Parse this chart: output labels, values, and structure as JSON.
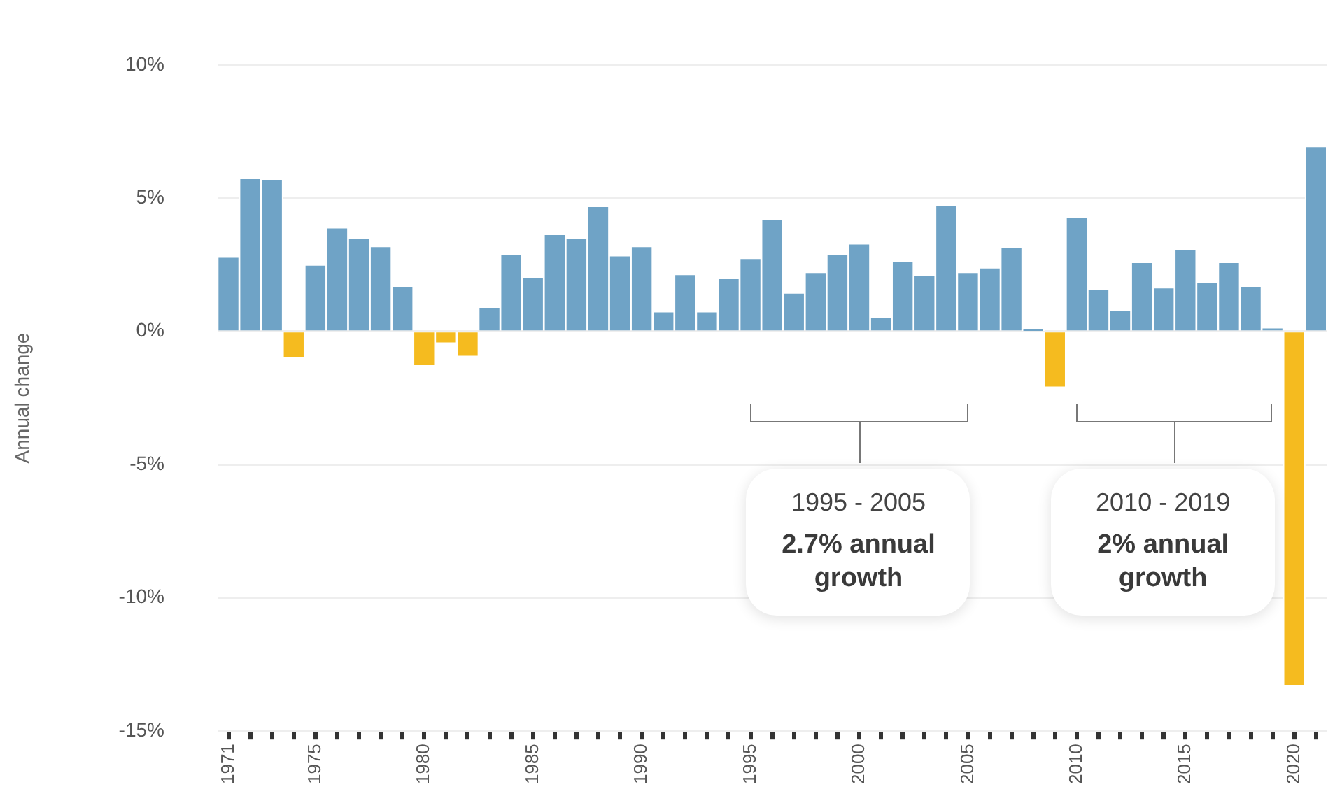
{
  "chart_data": {
    "type": "bar",
    "ylabel": "Annual change",
    "categories": [
      "1971",
      null,
      null,
      null,
      "1975",
      null,
      null,
      null,
      null,
      "1980",
      null,
      null,
      null,
      null,
      "1985",
      null,
      null,
      null,
      null,
      "1990",
      null,
      null,
      null,
      null,
      "1995",
      null,
      null,
      null,
      null,
      "2000",
      null,
      null,
      null,
      null,
      "2005",
      null,
      null,
      null,
      null,
      "2010",
      null,
      null,
      null,
      null,
      "2015",
      null,
      null,
      null,
      null,
      "2020",
      null
    ],
    "values": [
      2.8,
      5.75,
      5.7,
      -1.0,
      2.5,
      3.9,
      3.5,
      3.2,
      1.7,
      -1.3,
      -0.45,
      -0.95,
      0.9,
      2.9,
      2.05,
      3.65,
      3.5,
      4.7,
      2.85,
      3.2,
      0.75,
      2.15,
      0.75,
      2.0,
      2.75,
      4.2,
      1.45,
      2.2,
      2.9,
      3.3,
      0.55,
      2.65,
      2.1,
      4.75,
      2.2,
      2.4,
      3.15,
      0.1,
      -2.1,
      4.3,
      1.6,
      0.8,
      2.6,
      1.65,
      3.1,
      1.85,
      2.6,
      1.7,
      0.15,
      -13.3,
      6.95
    ],
    "colors": [
      "#6fa3c6",
      "#6fa3c6",
      "#6fa3c6",
      "#f5bb1f",
      "#6fa3c6",
      "#6fa3c6",
      "#6fa3c6",
      "#6fa3c6",
      "#6fa3c6",
      "#f5bb1f",
      "#f5bb1f",
      "#f5bb1f",
      "#6fa3c6",
      "#6fa3c6",
      "#6fa3c6",
      "#6fa3c6",
      "#6fa3c6",
      "#6fa3c6",
      "#6fa3c6",
      "#6fa3c6",
      "#6fa3c6",
      "#6fa3c6",
      "#6fa3c6",
      "#6fa3c6",
      "#6fa3c6",
      "#6fa3c6",
      "#6fa3c6",
      "#6fa3c6",
      "#6fa3c6",
      "#6fa3c6",
      "#6fa3c6",
      "#6fa3c6",
      "#6fa3c6",
      "#6fa3c6",
      "#6fa3c6",
      "#6fa3c6",
      "#6fa3c6",
      "#6fa3c6",
      "#f5bb1f",
      "#6fa3c6",
      "#6fa3c6",
      "#6fa3c6",
      "#6fa3c6",
      "#6fa3c6",
      "#6fa3c6",
      "#6fa3c6",
      "#6fa3c6",
      "#6fa3c6",
      "#6fa3c6",
      "#f5bb1f",
      "#6fa3c6"
    ],
    "ylim": [
      -15,
      10
    ],
    "yticks": [
      {
        "value": -15,
        "label": "-15%"
      },
      {
        "value": -10,
        "label": "-10%"
      },
      {
        "value": -5,
        "label": "-5%"
      },
      {
        "value": 0,
        "label": "0%"
      },
      {
        "value": 5,
        "label": "5%"
      },
      {
        "value": 10,
        "label": "10%"
      }
    ],
    "grid": "y",
    "legend": false,
    "annotations": [
      "1995 - 2005",
      "2.7% annual growth",
      "2010 - 2019",
      "2% annual growth"
    ]
  }
}
